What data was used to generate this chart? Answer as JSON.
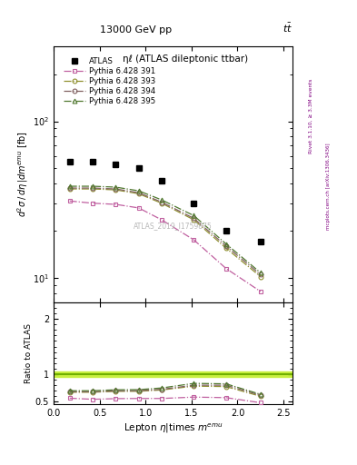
{
  "title_top": "13000 GeV pp",
  "title_right": "tt",
  "plot_title": "ηℓ (ATLAS dileptonic ttbar)",
  "ylabel_main": "d²σ / dη|dmᵉᵐᵘ [fb]",
  "ylabel_ratio": "Ratio to ATLAS",
  "xlabel": "Lepton η|times mᵉᵐᵘ",
  "watermark": "ATLAS_2019_I1759875",
  "rivet_label": "Rivet 3.1.10, ≥ 3.3M events",
  "arxiv_label": "mcplots.cern.ch [arXiv:1306.3436]",
  "atlas_x": [
    0.175,
    0.425,
    0.675,
    0.925,
    1.175,
    1.525,
    1.875,
    2.25
  ],
  "atlas_y": [
    55,
    55,
    53,
    50,
    42,
    30,
    20,
    17
  ],
  "p391_x": [
    0.175,
    0.425,
    0.675,
    0.925,
    1.175,
    1.525,
    1.875,
    2.25
  ],
  "p391_y": [
    31,
    30,
    29.5,
    28,
    23.5,
    17.5,
    11.5,
    8.2
  ],
  "p393_x": [
    0.175,
    0.425,
    0.675,
    0.925,
    1.175,
    1.525,
    1.875,
    2.25
  ],
  "p393_y": [
    37,
    37,
    36.5,
    34.5,
    30,
    23.5,
    15.5,
    10.2
  ],
  "p394_x": [
    0.175,
    0.425,
    0.675,
    0.925,
    1.175,
    1.525,
    1.875,
    2.25
  ],
  "p394_y": [
    37.5,
    37.5,
    37,
    35,
    30.5,
    24,
    16,
    10.5
  ],
  "p395_x": [
    0.175,
    0.425,
    0.675,
    0.925,
    1.175,
    1.525,
    1.875,
    2.25
  ],
  "p395_y": [
    38.5,
    38.5,
    38,
    36,
    31.5,
    25,
    16.5,
    10.8
  ],
  "ratio_p391_y": [
    0.565,
    0.545,
    0.557,
    0.56,
    0.56,
    0.585,
    0.575,
    0.483
  ],
  "ratio_p393_y": [
    0.673,
    0.673,
    0.689,
    0.69,
    0.714,
    0.783,
    0.775,
    0.6
  ],
  "ratio_p394_y": [
    0.682,
    0.682,
    0.698,
    0.7,
    0.726,
    0.8,
    0.8,
    0.618
  ],
  "ratio_p395_y": [
    0.7,
    0.7,
    0.717,
    0.72,
    0.75,
    0.833,
    0.825,
    0.635
  ],
  "color_391": "#c060a0",
  "color_393": "#909030",
  "color_394": "#806060",
  "color_395": "#507830",
  "ylim_main": [
    7,
    300
  ],
  "ylim_ratio": [
    0.45,
    2.3
  ],
  "xlim": [
    0.0,
    2.6
  ],
  "ratio_band_color": "#c8f040",
  "ratio_line_color": "#70b000"
}
